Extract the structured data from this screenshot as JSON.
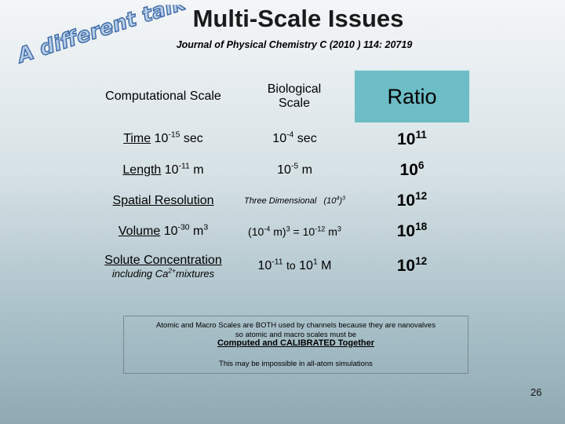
{
  "slide": {
    "title": "Multi-Scale Issues",
    "citation": "Journal of Physical Chemistry C (2010 ) 114: 20719",
    "tagline": "A different talk!",
    "page_number": "26"
  },
  "table": {
    "headers": {
      "computational": "Computational Scale",
      "biological_line1": "Biological",
      "biological_line2": "Scale",
      "ratio": "Ratio"
    },
    "rows": [
      {
        "comp_label": "Time",
        "comp_base": "10",
        "comp_exp": "-15",
        "comp_unit": "sec",
        "bio_base": "10",
        "bio_exp": "-4",
        "bio_unit": "sec",
        "ratio_base": "10",
        "ratio_exp": "11"
      },
      {
        "comp_label": "Length",
        "comp_base": "10",
        "comp_exp": "-11",
        "comp_unit": "m",
        "bio_base": "10",
        "bio_exp": "-5",
        "bio_unit": "m",
        "ratio_base": "10",
        "ratio_exp": "6"
      },
      {
        "comp_label": "Spatial Resolution",
        "bio_text": "Three Dimensional",
        "bio_expr": "(10",
        "bio_expr_exp": "4",
        "bio_expr_close": ")",
        "bio_expr_pow": "3",
        "ratio_base": "10",
        "ratio_exp": "12"
      },
      {
        "comp_label": "Volume",
        "comp_base": "10",
        "comp_exp": "-30",
        "comp_unit": "m",
        "comp_unit_exp": "3",
        "bio_open": "(10",
        "bio_exp": "-4",
        "bio_mid": "m)",
        "bio_mid_exp": "3",
        "bio_eq": "=  10",
        "bio_eq_exp": "-12",
        "bio_unit": "m",
        "bio_unit_exp": "3",
        "ratio_base": "10",
        "ratio_exp": "18"
      },
      {
        "comp_label": "Solute Concentration",
        "comp_sub": "including  Ca",
        "comp_sub_sup": "2+",
        "comp_sub_end": "mixtures",
        "bio_base": "10",
        "bio_exp": "-11",
        "bio_to": "to",
        "bio_base2": "10",
        "bio_exp2": "1",
        "bio_unit": "M",
        "ratio_base": "10",
        "ratio_exp": "12"
      }
    ]
  },
  "note": {
    "line1": "Atomic and Macro Scales are BOTH used by channels because they are nanovalves",
    "line2": "so atomic and macro scales must be",
    "emphasis": "Computed and CALIBRATED Together",
    "line3": "This may be impossible in all-atom simulations"
  }
}
